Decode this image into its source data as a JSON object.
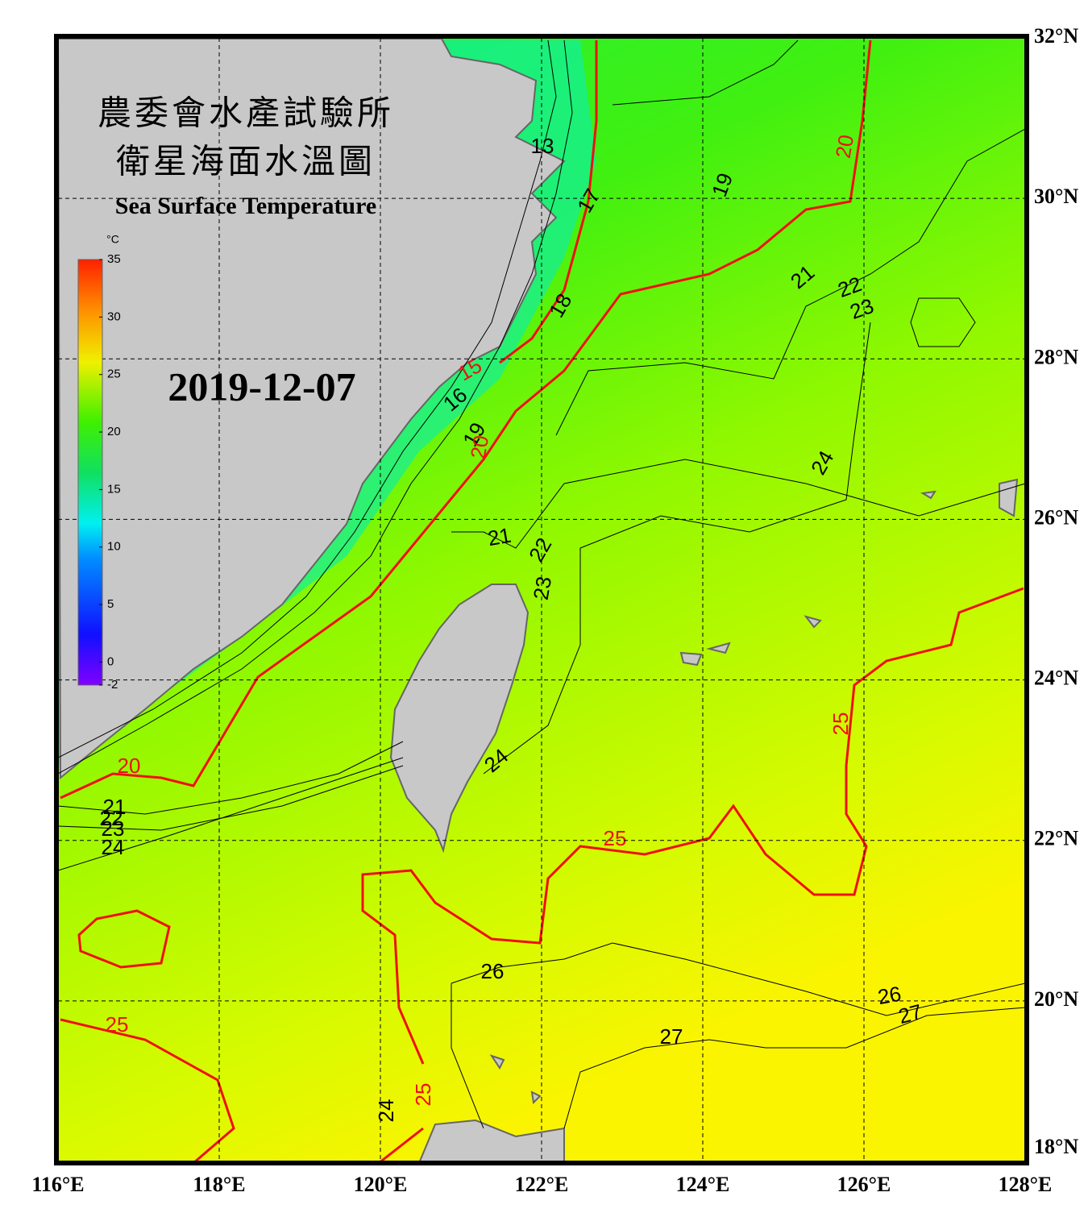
{
  "header": {
    "title_zh_1": "農委會水產試驗所",
    "title_zh_2": "衛星海面水溫圖",
    "title_en": "Sea Surface Temperature",
    "date": "2019-12-07"
  },
  "colorbar": {
    "unit": "°C",
    "lim": [
      -2,
      35
    ],
    "ticks": [
      -2,
      0,
      5,
      10,
      15,
      20,
      25,
      30,
      35
    ]
  },
  "map": {
    "xlim": [
      116,
      128
    ],
    "ylim": [
      18,
      32
    ],
    "xticks": [
      {
        "value": 116,
        "label": "116°E"
      },
      {
        "value": 118,
        "label": "118°E"
      },
      {
        "value": 120,
        "label": "120°E"
      },
      {
        "value": 122,
        "label": "122°E"
      },
      {
        "value": 124,
        "label": "124°E"
      },
      {
        "value": 126,
        "label": "126°E"
      },
      {
        "value": 128,
        "label": "128°E"
      }
    ],
    "yticks": [
      {
        "value": 18,
        "label": "18°N"
      },
      {
        "value": 20,
        "label": "20°N"
      },
      {
        "value": 22,
        "label": "22°N"
      },
      {
        "value": 24,
        "label": "24°N"
      },
      {
        "value": 26,
        "label": "26°N"
      },
      {
        "value": 28,
        "label": "28°N"
      },
      {
        "value": 30,
        "label": "30°N"
      },
      {
        "value": 32,
        "label": "32°N"
      }
    ],
    "contour_labels": [
      13,
      17,
      19,
      20,
      21,
      22,
      23,
      18,
      15,
      16,
      19,
      20,
      24,
      21,
      22,
      23,
      25,
      24,
      20,
      21,
      22,
      23,
      24,
      25,
      26,
      26,
      27,
      27,
      25,
      25,
      24
    ]
  }
}
